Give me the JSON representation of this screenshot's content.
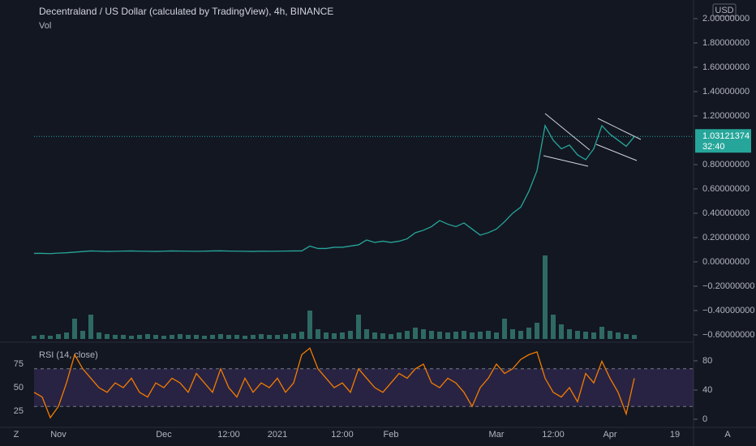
{
  "currency": "USD",
  "toolbar_left": "Z",
  "toolbar_right": "A",
  "chart_data": [
    {
      "type": "line",
      "title": "Decentraland / US Dollar (calculated by TradingView), 4h, BINANCE",
      "subtitle": "Vol",
      "categories": [
        null,
        null,
        null,
        "Nov",
        null,
        null,
        null,
        null,
        null,
        null,
        null,
        null,
        null,
        null,
        null,
        null,
        "Dec",
        null,
        null,
        null,
        null,
        null,
        null,
        null,
        "12:00",
        null,
        null,
        null,
        null,
        null,
        "2021",
        null,
        null,
        null,
        null,
        null,
        null,
        null,
        "12:00",
        null,
        null,
        null,
        null,
        null,
        "Feb",
        null,
        null,
        null,
        null,
        null,
        null,
        null,
        null,
        null,
        null,
        null,
        null,
        "Mar",
        null,
        null,
        null,
        null,
        null,
        null,
        "12:00",
        null,
        null,
        null,
        null,
        null,
        null,
        "Apr",
        null,
        null,
        null,
        null,
        null,
        null,
        null,
        "19"
      ],
      "values": [
        0.07,
        0.07,
        0.068,
        0.072,
        0.075,
        0.08,
        0.085,
        0.09,
        0.088,
        0.086,
        0.087,
        0.089,
        0.09,
        0.088,
        0.087,
        0.086,
        0.088,
        0.09,
        0.089,
        0.088,
        0.087,
        0.088,
        0.09,
        0.091,
        0.089,
        0.088,
        0.087,
        0.086,
        0.088,
        0.087,
        0.088,
        0.089,
        0.09,
        0.09,
        0.13,
        0.11,
        0.11,
        0.12,
        0.12,
        0.13,
        0.14,
        0.18,
        0.16,
        0.17,
        0.16,
        0.17,
        0.19,
        0.24,
        0.26,
        0.29,
        0.34,
        0.31,
        0.29,
        0.32,
        0.27,
        0.22,
        0.24,
        0.27,
        0.33,
        0.4,
        0.45,
        0.58,
        0.75,
        1.12,
        1.0,
        0.93,
        0.96,
        0.88,
        0.84,
        0.93,
        1.12,
        1.05,
        1.0,
        0.95,
        1.03,
        null,
        null,
        null,
        null,
        null
      ],
      "color": "#26a69a",
      "volume": {
        "values": [
          4,
          5,
          4,
          6,
          8,
          25,
          10,
          30,
          8,
          6,
          5,
          5,
          4,
          5,
          6,
          5,
          4,
          5,
          6,
          5,
          5,
          4,
          5,
          6,
          5,
          5,
          4,
          5,
          6,
          5,
          5,
          6,
          7,
          9,
          35,
          12,
          8,
          7,
          8,
          10,
          30,
          12,
          8,
          7,
          6,
          8,
          10,
          14,
          12,
          10,
          9,
          8,
          9,
          10,
          8,
          9,
          10,
          8,
          25,
          12,
          10,
          14,
          20,
          103,
          30,
          18,
          12,
          10,
          9,
          8,
          15,
          10,
          8,
          6,
          5,
          null,
          null,
          null,
          null,
          null
        ],
        "color": "#2e6a63"
      },
      "last_price": 1.03121374,
      "countdown": "32:40",
      "ylim": [
        -0.647,
        2.153
      ],
      "yticks": [
        {
          "value": 2,
          "label": "2.00000000"
        },
        {
          "value": 1.8,
          "label": "1.80000000"
        },
        {
          "value": 1.6,
          "label": "1.60000000"
        },
        {
          "value": 1.4,
          "label": "1.40000000"
        },
        {
          "value": 1.2,
          "label": "1.20000000"
        },
        {
          "value": 0.8,
          "label": "0.80000000"
        },
        {
          "value": 0.6,
          "label": "0.60000000"
        },
        {
          "value": 0.4,
          "label": "0.40000000"
        },
        {
          "value": 0.2,
          "label": "0.20000000"
        },
        {
          "value": 0,
          "label": "0.00000000"
        },
        {
          "value": -0.2,
          "label": "−0.20000000"
        },
        {
          "value": -0.4,
          "label": "−0.40000000"
        },
        {
          "value": -0.6,
          "label": "−0.60000000"
        }
      ]
    },
    {
      "type": "line",
      "title": "RSI (14, close)",
      "values": [
        45,
        40,
        18,
        30,
        55,
        85,
        70,
        60,
        50,
        45,
        55,
        50,
        60,
        45,
        40,
        55,
        50,
        60,
        55,
        45,
        65,
        55,
        45,
        70,
        50,
        40,
        60,
        45,
        55,
        50,
        60,
        45,
        55,
        85,
        92,
        70,
        60,
        50,
        55,
        45,
        70,
        60,
        50,
        45,
        55,
        65,
        60,
        70,
        75,
        55,
        50,
        60,
        55,
        45,
        30,
        50,
        60,
        75,
        65,
        70,
        80,
        85,
        88,
        60,
        45,
        40,
        50,
        35,
        65,
        55,
        78,
        60,
        45,
        22,
        60,
        null,
        null,
        null,
        null,
        null
      ],
      "color": "#f57c00",
      "bands": [
        30,
        70
      ],
      "ylim": [
        9.5,
        93.1
      ],
      "yticks": [
        25,
        50,
        75
      ],
      "y2lim": [
        -8.9,
        98.9
      ],
      "y2ticks": [
        80,
        40,
        0
      ]
    }
  ]
}
